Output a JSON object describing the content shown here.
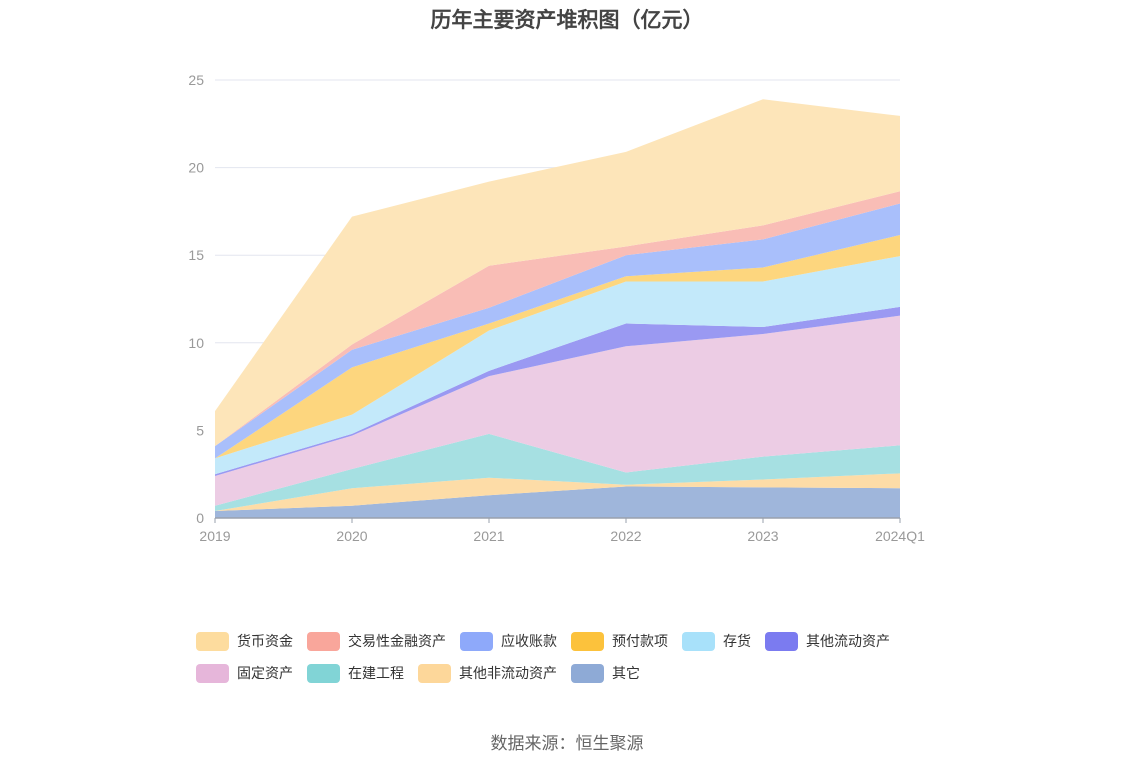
{
  "chart_data": {
    "type": "area",
    "stacked": true,
    "title": "历年主要资产堆积图（亿元）",
    "categories": [
      "2019",
      "2020",
      "2021",
      "2022",
      "2023",
      "2024Q1"
    ],
    "ylim": [
      0,
      25
    ],
    "yticks": [
      "0",
      "5",
      "10",
      "15",
      "20",
      "25"
    ],
    "grid": true,
    "legend_position": "bottom",
    "series": [
      {
        "name": "其它",
        "values": [
          0.4,
          0.7,
          1.3,
          1.8,
          1.75,
          1.7
        ],
        "color": "#9fb6db"
      },
      {
        "name": "其他非流动资产",
        "values": [
          0.0,
          1.0,
          1.0,
          0.1,
          0.45,
          0.85
        ],
        "color": "#fddca7"
      },
      {
        "name": "在建工程",
        "values": [
          0.3,
          1.1,
          2.5,
          0.7,
          1.3,
          1.6
        ],
        "color": "#a6e0e2"
      },
      {
        "name": "固定资产",
        "values": [
          1.7,
          1.9,
          3.3,
          7.2,
          7.0,
          7.4
        ],
        "color": "#ecccE4"
      },
      {
        "name": "其他流动资产",
        "values": [
          0.1,
          0.1,
          0.3,
          1.3,
          0.4,
          0.5
        ],
        "color": "#9a99f2"
      },
      {
        "name": "存货",
        "values": [
          0.9,
          1.1,
          2.3,
          2.4,
          2.6,
          2.9
        ],
        "color": "#c3e9fa"
      },
      {
        "name": "预付款项",
        "values": [
          0.0,
          2.7,
          0.4,
          0.3,
          0.8,
          1.2
        ],
        "color": "#fdd67e"
      },
      {
        "name": "应收账款",
        "values": [
          0.7,
          1.0,
          0.9,
          1.2,
          1.6,
          1.8
        ],
        "color": "#a9bffb"
      },
      {
        "name": "交易性金融资产",
        "values": [
          0.0,
          0.3,
          2.4,
          0.5,
          0.8,
          0.7
        ],
        "color": "#f9bdb6"
      },
      {
        "name": "货币资金",
        "values": [
          2.0,
          7.3,
          4.8,
          5.4,
          7.2,
          4.3
        ],
        "color": "#fde5b9"
      }
    ]
  },
  "legend": [
    {
      "label": "货币资金",
      "color": "#fddc9e"
    },
    {
      "label": "交易性金融资产",
      "color": "#f9a69b"
    },
    {
      "label": "应收账款",
      "color": "#8ea9fa"
    },
    {
      "label": "预付款项",
      "color": "#fcc23c"
    },
    {
      "label": "存货",
      "color": "#a8e1fa"
    },
    {
      "label": "其他流动资产",
      "color": "#7b7bf0"
    },
    {
      "label": "固定资产",
      "color": "#e6b6da"
    },
    {
      "label": "在建工程",
      "color": "#81d4d6"
    },
    {
      "label": "其他非流动资产",
      "color": "#fdd79a"
    },
    {
      "label": "其它",
      "color": "#8eaad6"
    }
  ],
  "source": "数据来源：恒生聚源"
}
